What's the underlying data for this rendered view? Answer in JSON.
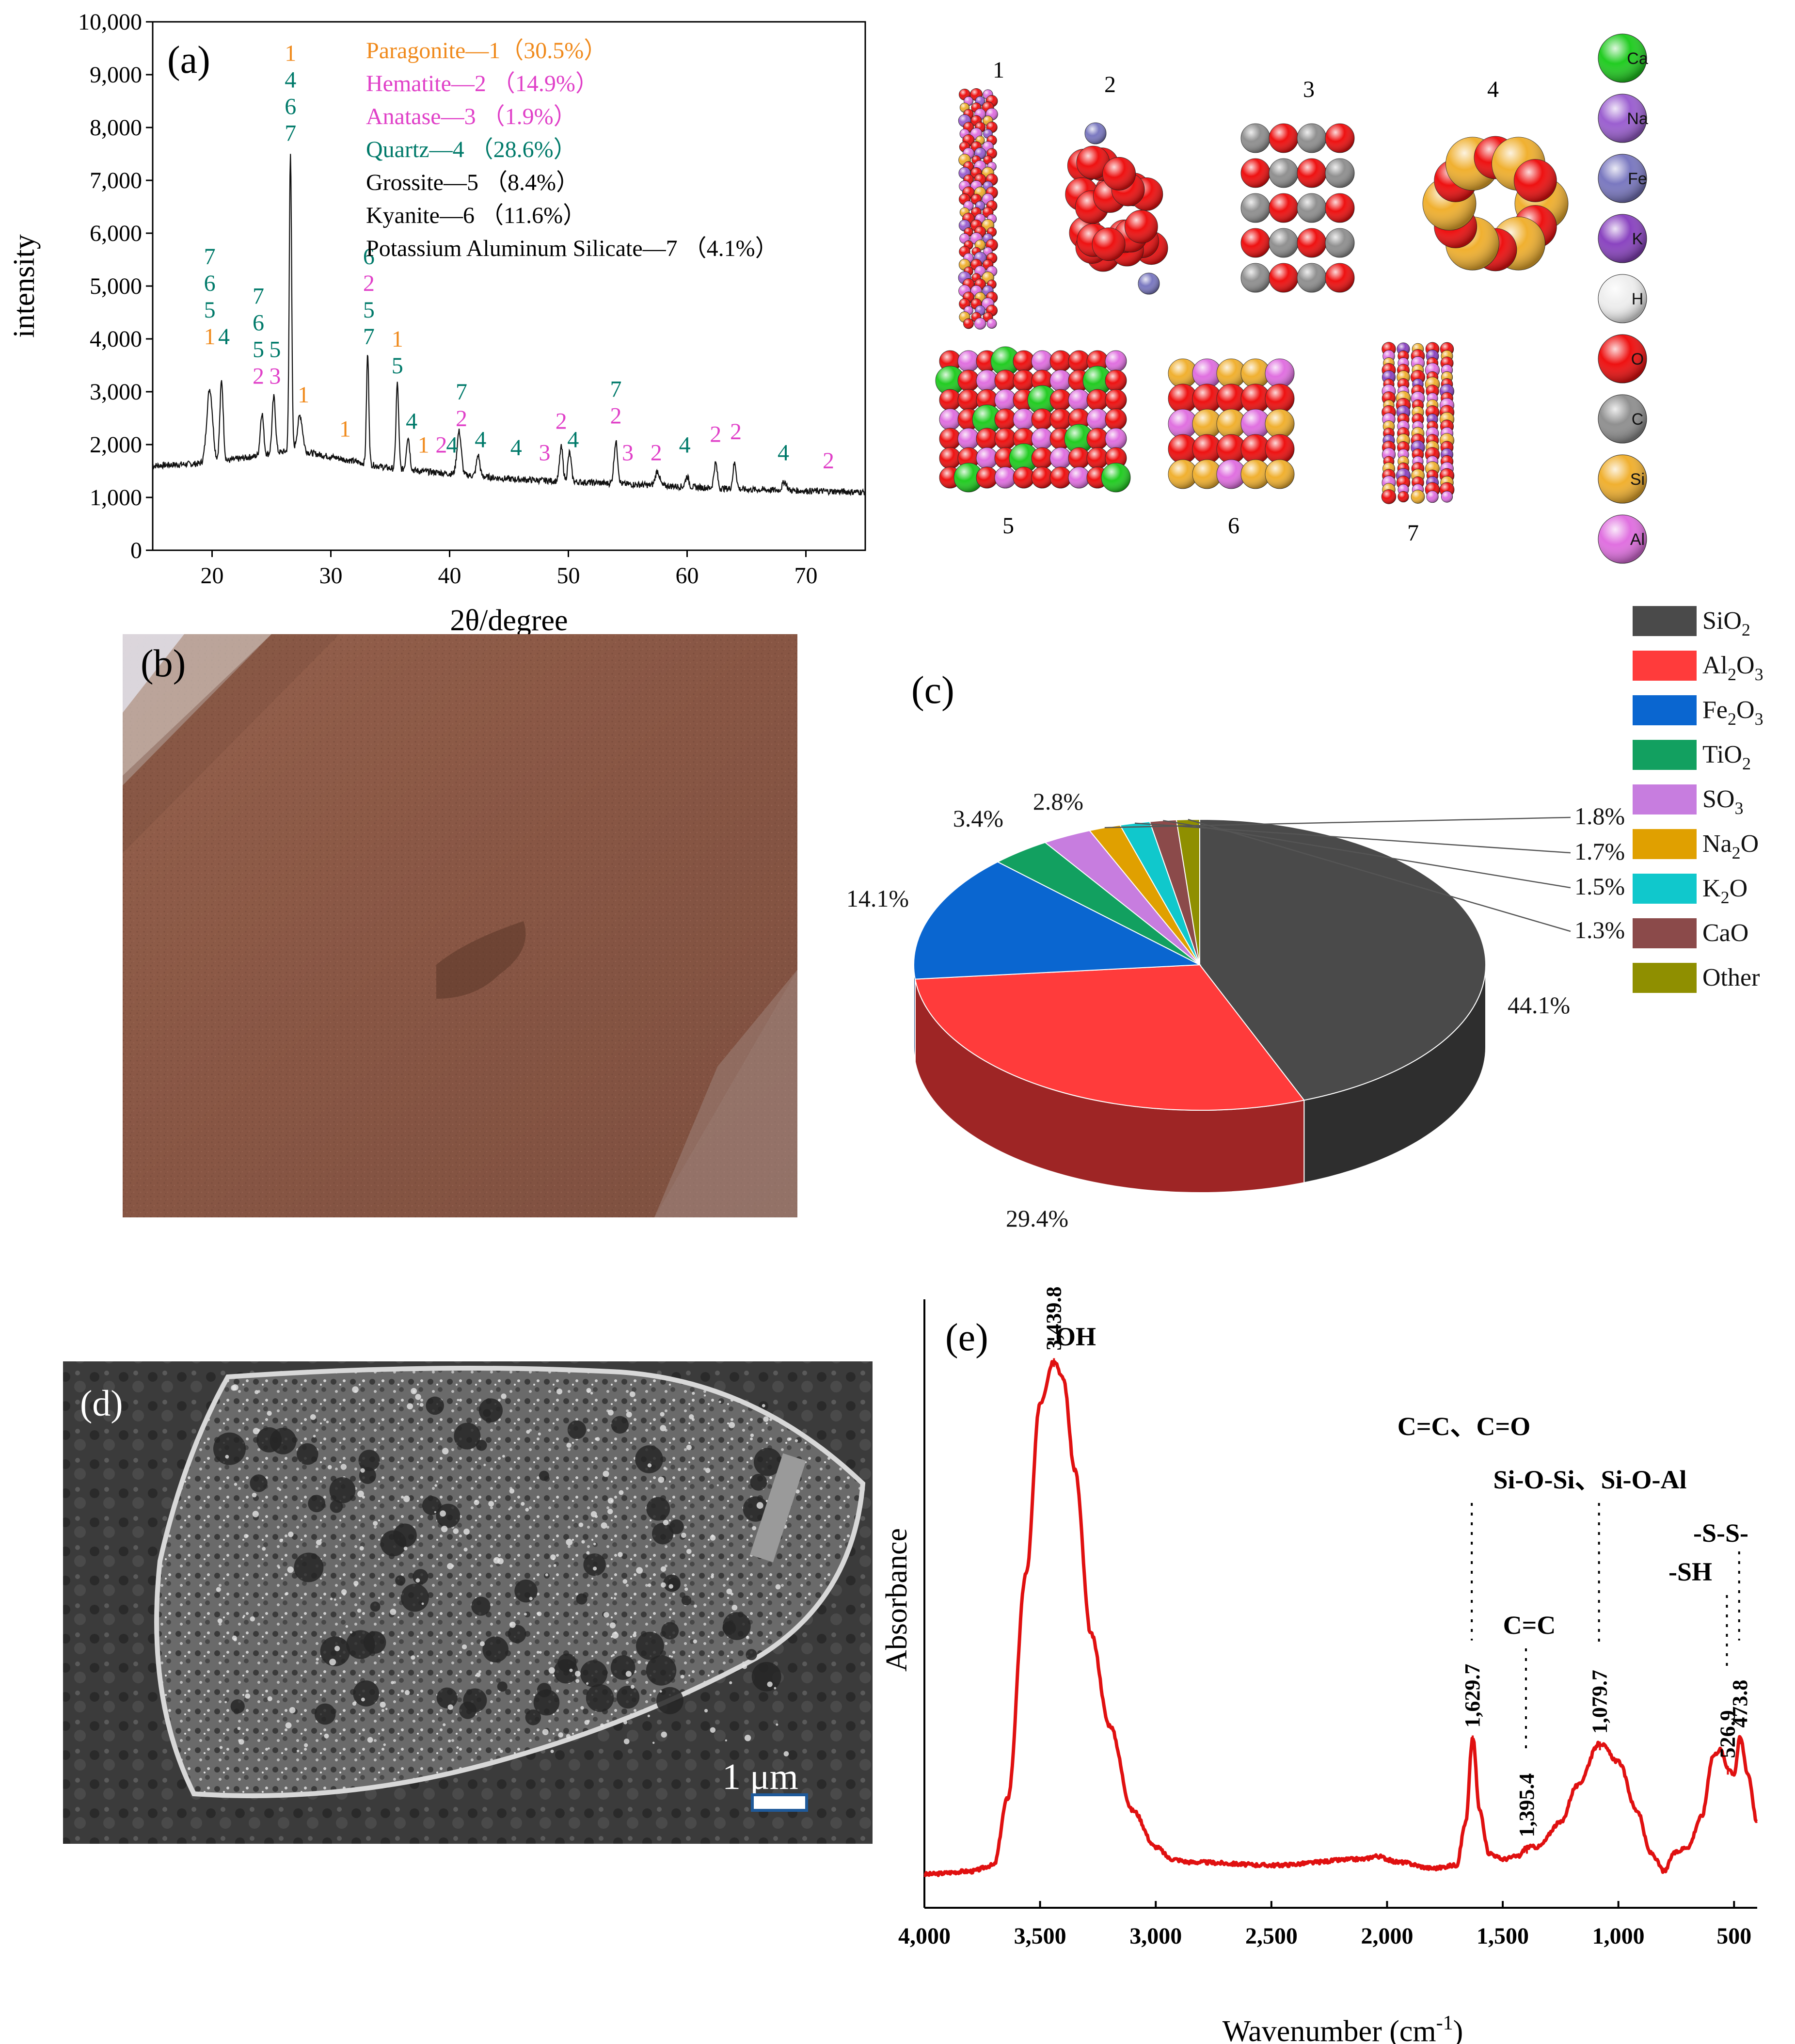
{
  "colors": {
    "paragonite": "#f08a1c",
    "hematite": "#e040c8",
    "quartz": "#007a6a",
    "black": "#000000",
    "ir_line": "#e01010",
    "soil": "#8a5a48"
  },
  "panel_a": {
    "label": "(a)",
    "legend": [
      {
        "text": "Paragonite—1（30.5%）",
        "color": "#f08a1c"
      },
      {
        "text": "Hematite—2 （14.9%）",
        "color": "#e040c8"
      },
      {
        "text": "Anatase—3 （1.9%）",
        "color": "#e040c8"
      },
      {
        "text": "Quartz—4 （28.6%）",
        "color": "#007a6a"
      },
      {
        "text": "Grossite—5 （8.4%）",
        "color": "#000000"
      },
      {
        "text": "Kyanite—6 （11.6%）",
        "color": "#000000"
      },
      {
        "text": "Potassium Aluminum Silicate—7 （4.1%）",
        "color": "#000000"
      }
    ]
  },
  "panel_a_structures": {
    "numbers": [
      "1",
      "2",
      "3",
      "4",
      "5",
      "6",
      "7"
    ],
    "elements": [
      {
        "symbol": "Ca",
        "color": "#22cc22"
      },
      {
        "symbol": "Na",
        "color": "#9b5fd0"
      },
      {
        "symbol": "Fe",
        "color": "#7a78c0"
      },
      {
        "symbol": "K",
        "color": "#8a44c0"
      },
      {
        "symbol": "H",
        "color": "#eeeeee"
      },
      {
        "symbol": "O",
        "color": "#ee1111"
      },
      {
        "symbol": "C",
        "color": "#909090"
      },
      {
        "symbol": "Si",
        "color": "#f0b030"
      },
      {
        "symbol": "Al",
        "color": "#e070e0"
      }
    ]
  },
  "panel_b": {
    "label": "(b)"
  },
  "panel_c": {
    "label": "(c)"
  },
  "panel_d": {
    "label": "(d)",
    "scale_bar": "1 μm"
  },
  "panel_e": {
    "label": "(e)"
  },
  "chart_data": [
    {
      "id": "xrd",
      "type": "line",
      "title": "(a)",
      "xlabel": "2θ/degree",
      "ylabel": "intensity",
      "xlim": [
        15,
        75
      ],
      "ylim": [
        0,
        10000
      ],
      "xticks": [
        20,
        30,
        40,
        50,
        60,
        70
      ],
      "yticks": [
        0,
        1000,
        2000,
        3000,
        4000,
        5000,
        6000,
        7000,
        8000,
        9000,
        10000
      ],
      "ytick_labels": [
        "0",
        "1,000",
        "2,000",
        "3,000",
        "4,000",
        "5,000",
        "6,000",
        "7,000",
        "8,000",
        "9,000",
        "10,000"
      ],
      "peaks": [
        {
          "x": 19.8,
          "y": 3050,
          "w": 0.35
        },
        {
          "x": 20.8,
          "y": 3200,
          "w": 0.2
        },
        {
          "x": 24.2,
          "y": 2600,
          "w": 0.2
        },
        {
          "x": 25.2,
          "y": 2900,
          "w": 0.2
        },
        {
          "x": 26.6,
          "y": 7550,
          "w": 0.14
        },
        {
          "x": 27.4,
          "y": 2550,
          "w": 0.3
        },
        {
          "x": 33.1,
          "y": 3720,
          "w": 0.14
        },
        {
          "x": 35.6,
          "y": 3150,
          "w": 0.16
        },
        {
          "x": 36.5,
          "y": 2150,
          "w": 0.2
        },
        {
          "x": 40.8,
          "y": 2250,
          "w": 0.25
        },
        {
          "x": 42.4,
          "y": 1800,
          "w": 0.2
        },
        {
          "x": 49.4,
          "y": 1950,
          "w": 0.2
        },
        {
          "x": 50.1,
          "y": 1850,
          "w": 0.2
        },
        {
          "x": 54.0,
          "y": 2050,
          "w": 0.22
        },
        {
          "x": 57.5,
          "y": 1500,
          "w": 0.25
        },
        {
          "x": 60.0,
          "y": 1400,
          "w": 0.2
        },
        {
          "x": 62.4,
          "y": 1650,
          "w": 0.2
        },
        {
          "x": 64.0,
          "y": 1650,
          "w": 0.2
        },
        {
          "x": 68.2,
          "y": 1300,
          "w": 0.25
        }
      ],
      "baseline": [
        [
          15,
          1600
        ],
        [
          20,
          1650
        ],
        [
          27,
          1900
        ],
        [
          35,
          1550
        ],
        [
          45,
          1350
        ],
        [
          55,
          1250
        ],
        [
          65,
          1150
        ],
        [
          75,
          1100
        ]
      ],
      "peak_labels": [
        {
          "x": 19.8,
          "y": 3900,
          "labels": [
            {
              "t": "1",
              "c": "#f08a1c"
            },
            {
              "t": "5",
              "c": "#007a6a"
            },
            {
              "t": "6",
              "c": "#007a6a"
            },
            {
              "t": "7",
              "c": "#007a6a"
            }
          ]
        },
        {
          "x": 21.0,
          "y": 3900,
          "labels": [
            {
              "t": "4",
              "c": "#007a6a"
            }
          ]
        },
        {
          "x": 23.9,
          "y": 3150,
          "labels": [
            {
              "t": "2",
              "c": "#e040c8"
            },
            {
              "t": "5",
              "c": "#007a6a"
            },
            {
              "t": "6",
              "c": "#007a6a"
            },
            {
              "t": "7",
              "c": "#007a6a"
            }
          ]
        },
        {
          "x": 25.3,
          "y": 3150,
          "labels": [
            {
              "t": "3",
              "c": "#e040c8"
            },
            {
              "t": "5",
              "c": "#007a6a"
            }
          ]
        },
        {
          "x": 26.6,
          "y": 7750,
          "labels": [
            {
              "t": "7",
              "c": "#007a6a"
            },
            {
              "t": "6",
              "c": "#007a6a"
            },
            {
              "t": "4",
              "c": "#007a6a"
            },
            {
              "t": "1",
              "c": "#f08a1c"
            }
          ]
        },
        {
          "x": 27.7,
          "y": 2800,
          "labels": [
            {
              "t": "1",
              "c": "#f08a1c"
            }
          ]
        },
        {
          "x": 31.2,
          "y": 2150,
          "labels": [
            {
              "t": "1",
              "c": "#f08a1c"
            }
          ]
        },
        {
          "x": 33.2,
          "y": 3900,
          "labels": [
            {
              "t": "7",
              "c": "#007a6a"
            },
            {
              "t": "5",
              "c": "#007a6a"
            },
            {
              "t": "2",
              "c": "#e040c8"
            },
            {
              "t": "6",
              "c": "#007a6a"
            }
          ]
        },
        {
          "x": 35.6,
          "y": 3350,
          "labels": [
            {
              "t": "5",
              "c": "#007a6a"
            },
            {
              "t": "1",
              "c": "#f08a1c"
            }
          ]
        },
        {
          "x": 36.8,
          "y": 2300,
          "labels": [
            {
              "t": "4",
              "c": "#007a6a"
            }
          ]
        },
        {
          "x": 37.8,
          "y": 1850,
          "labels": [
            {
              "t": "1",
              "c": "#f08a1c"
            }
          ]
        },
        {
          "x": 39.3,
          "y": 1850,
          "labels": [
            {
              "t": "2",
              "c": "#e040c8"
            }
          ]
        },
        {
          "x": 40.2,
          "y": 1850,
          "labels": [
            {
              "t": "4",
              "c": "#007a6a"
            }
          ]
        },
        {
          "x": 41.0,
          "y": 2350,
          "labels": [
            {
              "t": "2",
              "c": "#e040c8"
            },
            {
              "t": "7",
              "c": "#007a6a"
            }
          ]
        },
        {
          "x": 42.6,
          "y": 1950,
          "labels": [
            {
              "t": "4",
              "c": "#007a6a"
            }
          ]
        },
        {
          "x": 45.6,
          "y": 1800,
          "labels": [
            {
              "t": "4",
              "c": "#007a6a"
            }
          ]
        },
        {
          "x": 48.0,
          "y": 1700,
          "labels": [
            {
              "t": "3",
              "c": "#e040c8"
            }
          ]
        },
        {
          "x": 49.4,
          "y": 2300,
          "labels": [
            {
              "t": "2",
              "c": "#e040c8"
            }
          ]
        },
        {
          "x": 50.4,
          "y": 1950,
          "labels": [
            {
              "t": "4",
              "c": "#007a6a"
            }
          ]
        },
        {
          "x": 54.0,
          "y": 2400,
          "labels": [
            {
              "t": "2",
              "c": "#e040c8"
            },
            {
              "t": "7",
              "c": "#007a6a"
            }
          ]
        },
        {
          "x": 55.0,
          "y": 1700,
          "labels": [
            {
              "t": "3",
              "c": "#e040c8"
            }
          ]
        },
        {
          "x": 57.4,
          "y": 1700,
          "labels": [
            {
              "t": "2",
              "c": "#e040c8"
            }
          ]
        },
        {
          "x": 59.8,
          "y": 1850,
          "labels": [
            {
              "t": "4",
              "c": "#007a6a"
            }
          ]
        },
        {
          "x": 62.4,
          "y": 2050,
          "labels": [
            {
              "t": "2",
              "c": "#e040c8"
            }
          ]
        },
        {
          "x": 64.1,
          "y": 2100,
          "labels": [
            {
              "t": "2",
              "c": "#e040c8"
            }
          ]
        },
        {
          "x": 68.1,
          "y": 1700,
          "labels": [
            {
              "t": "4",
              "c": "#007a6a"
            }
          ]
        },
        {
          "x": 71.9,
          "y": 1550,
          "labels": [
            {
              "t": "2",
              "c": "#e040c8"
            }
          ]
        }
      ]
    },
    {
      "id": "composition",
      "type": "pie",
      "title": "(c)",
      "slices": [
        {
          "name": "SiO2",
          "value": 44.1,
          "label": "44.1%",
          "color": "#4a4a4a"
        },
        {
          "name": "Al2O3",
          "value": 29.4,
          "label": "29.4%",
          "color": "#ff3b3b"
        },
        {
          "name": "Fe2O3",
          "value": 14.1,
          "label": "14.1%",
          "color": "#0a66d0"
        },
        {
          "name": "TiO2",
          "value": 3.4,
          "label": "3.4%",
          "color": "#12a060"
        },
        {
          "name": "SO3",
          "value": 2.8,
          "label": "2.8%",
          "color": "#c77ddf"
        },
        {
          "name": "Na2O",
          "value": 1.8,
          "label": "1.8%",
          "color": "#e0a000"
        },
        {
          "name": "K2O",
          "value": 1.7,
          "label": "1.7%",
          "color": "#10c8cc"
        },
        {
          "name": "CaO",
          "value": 1.5,
          "label": "1.5%",
          "color": "#8b4a4a"
        },
        {
          "name": "Other",
          "value": 1.3,
          "label": "1.3%",
          "color": "#8f8f00"
        }
      ],
      "legend": [
        {
          "base": "SiO",
          "sub": "2",
          "color": "#4a4a4a"
        },
        {
          "base": "Al",
          "sub": "2",
          "base2": "O",
          "sub2": "3",
          "color": "#ff3b3b"
        },
        {
          "base": "Fe",
          "sub": "2",
          "base2": "O",
          "sub2": "3",
          "color": "#0a66d0"
        },
        {
          "base": "TiO",
          "sub": "2",
          "color": "#12a060"
        },
        {
          "base": "SO",
          "sub": "3",
          "color": "#c77ddf"
        },
        {
          "base": "Na",
          "sub": "2",
          "base2": "O",
          "color": "#e0a000"
        },
        {
          "base": "K",
          "sub": "2",
          "base2": "O",
          "color": "#10c8cc"
        },
        {
          "base": "CaO",
          "color": "#8b4a4a"
        },
        {
          "base": "Other",
          "color": "#8f8f00"
        }
      ]
    },
    {
      "id": "ftir",
      "type": "line",
      "title": "(e)",
      "xlabel": "Wavenumber (cm",
      "xlabel_sup": "-1",
      "xlabel_end": ")",
      "ylabel": "Absorbance",
      "xlim": [
        4000,
        400
      ],
      "xticks": [
        4000,
        3500,
        3000,
        2500,
        2000,
        1500,
        1000,
        500
      ],
      "xtick_labels": [
        "4,000",
        "3,500",
        "3,000",
        "2,500",
        "2,000",
        "1,500",
        "1,000",
        "500"
      ],
      "spectrum": [
        [
          4000,
          0.055
        ],
        [
          3800,
          0.06
        ],
        [
          3700,
          0.07
        ],
        [
          3640,
          0.18
        ],
        [
          3560,
          0.55
        ],
        [
          3500,
          0.83
        ],
        [
          3439.8,
          0.9
        ],
        [
          3400,
          0.87
        ],
        [
          3350,
          0.72
        ],
        [
          3280,
          0.45
        ],
        [
          3200,
          0.3
        ],
        [
          3100,
          0.16
        ],
        [
          3000,
          0.1
        ],
        [
          2930,
          0.08
        ],
        [
          2850,
          0.075
        ],
        [
          2500,
          0.07
        ],
        [
          2100,
          0.08
        ],
        [
          2050,
          0.085
        ],
        [
          1950,
          0.075
        ],
        [
          1800,
          0.065
        ],
        [
          1700,
          0.07
        ],
        [
          1660,
          0.14
        ],
        [
          1629.7,
          0.28
        ],
        [
          1600,
          0.16
        ],
        [
          1560,
          0.09
        ],
        [
          1500,
          0.08
        ],
        [
          1430,
          0.085
        ],
        [
          1395.4,
          0.1
        ],
        [
          1350,
          0.1
        ],
        [
          1250,
          0.14
        ],
        [
          1180,
          0.2
        ],
        [
          1079.7,
          0.27
        ],
        [
          1000,
          0.24
        ],
        [
          920,
          0.16
        ],
        [
          860,
          0.09
        ],
        [
          800,
          0.06
        ],
        [
          760,
          0.09
        ],
        [
          700,
          0.1
        ],
        [
          640,
          0.15
        ],
        [
          590,
          0.25
        ],
        [
          560,
          0.26
        ],
        [
          526.9,
          0.23
        ],
        [
          500,
          0.22
        ],
        [
          473.8,
          0.28
        ],
        [
          440,
          0.22
        ],
        [
          400,
          0.14
        ]
      ],
      "peaks": [
        {
          "x": 3439.8,
          "y": 0.9,
          "label": "3,439.8",
          "group": "-OH",
          "line": false
        },
        {
          "x": 1629.7,
          "y": 0.28,
          "label": "1,629.7",
          "group": "C=C、C=O",
          "line": true
        },
        {
          "x": 1395.4,
          "y": 0.1,
          "label": "1,395.4",
          "group": "C=C",
          "line": true
        },
        {
          "x": 1079.7,
          "y": 0.27,
          "label": "1,079.7",
          "group": "Si-O-Si、Si-O-Al",
          "line": true
        },
        {
          "x": 526.9,
          "y": 0.23,
          "label": "526.9",
          "group": "-SH",
          "line": true
        },
        {
          "x": 473.8,
          "y": 0.28,
          "label": "473.8",
          "group": "-S-S-",
          "line": true
        }
      ]
    }
  ]
}
